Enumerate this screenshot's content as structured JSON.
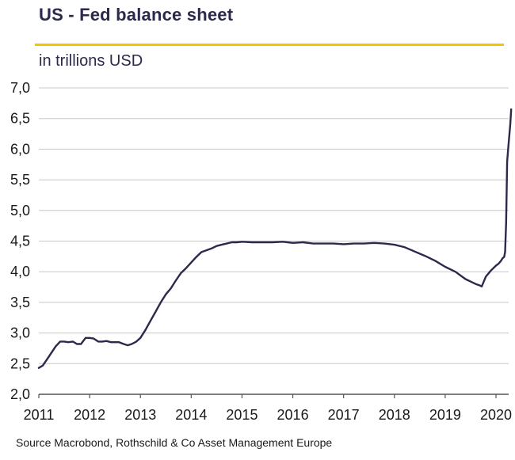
{
  "title": "US - Fed balance sheet",
  "subtitle": "in trillions USD",
  "source": "Source Macrobond,  Rothschild & Co Asset Management  Europe",
  "colors": {
    "accent_rule": "#f2c500",
    "line": "#2b2a4c",
    "grid": "#c8c8c8",
    "axis": "#555555"
  },
  "chart_data": {
    "type": "line",
    "title": "US - Fed balance sheet",
    "ylabel": "in trillions USD",
    "xlabel": "",
    "xlim": [
      2011,
      2020.3
    ],
    "ylim": [
      2.0,
      7.0
    ],
    "grid": "horizontal",
    "x_ticks": [
      {
        "value": 2011,
        "label": "2011"
      },
      {
        "value": 2012,
        "label": "2012"
      },
      {
        "value": 2013,
        "label": "2013"
      },
      {
        "value": 2014,
        "label": "2014"
      },
      {
        "value": 2015,
        "label": "2015"
      },
      {
        "value": 2016,
        "label": "2016"
      },
      {
        "value": 2017,
        "label": "2017"
      },
      {
        "value": 2018,
        "label": "2018"
      },
      {
        "value": 2019,
        "label": "2019"
      },
      {
        "value": 2020,
        "label": "2020"
      }
    ],
    "y_ticks": [
      {
        "value": 2.0,
        "label": "2,0"
      },
      {
        "value": 2.5,
        "label": "2,5"
      },
      {
        "value": 3.0,
        "label": "3,0"
      },
      {
        "value": 3.5,
        "label": "3,5"
      },
      {
        "value": 4.0,
        "label": "4,0"
      },
      {
        "value": 4.5,
        "label": "4,5"
      },
      {
        "value": 5.0,
        "label": "5,0"
      },
      {
        "value": 5.5,
        "label": "5,5"
      },
      {
        "value": 6.0,
        "label": "6,0"
      },
      {
        "value": 6.5,
        "label": "6,5"
      },
      {
        "value": 7.0,
        "label": "7,0"
      }
    ],
    "series": [
      {
        "x": [
          2011.0,
          2011.08,
          2011.17,
          2011.25,
          2011.33,
          2011.42,
          2011.5,
          2011.58,
          2011.67,
          2011.75,
          2011.83,
          2011.92,
          2012.0,
          2012.08,
          2012.17,
          2012.25,
          2012.33,
          2012.42,
          2012.5,
          2012.58,
          2012.67,
          2012.75,
          2012.83,
          2012.92,
          2013.0,
          2013.1,
          2013.2,
          2013.3,
          2013.4,
          2013.5,
          2013.6,
          2013.7,
          2013.8,
          2013.9,
          2014.0,
          2014.1,
          2014.2,
          2014.3,
          2014.4,
          2014.5,
          2014.6,
          2014.7,
          2014.8,
          2014.9,
          2015.0,
          2015.2,
          2015.4,
          2015.6,
          2015.8,
          2016.0,
          2016.2,
          2016.4,
          2016.6,
          2016.8,
          2017.0,
          2017.2,
          2017.4,
          2017.6,
          2017.8,
          2018.0,
          2018.2,
          2018.4,
          2018.6,
          2018.8,
          2019.0,
          2019.2,
          2019.4,
          2019.5,
          2019.6,
          2019.67,
          2019.72,
          2019.8,
          2019.9,
          2020.0,
          2020.05,
          2020.1,
          2020.13,
          2020.16,
          2020.18,
          2020.2,
          2020.22,
          2020.25,
          2020.28,
          2020.3
        ],
        "values": [
          2.43,
          2.47,
          2.58,
          2.68,
          2.78,
          2.86,
          2.86,
          2.85,
          2.86,
          2.82,
          2.82,
          2.92,
          2.92,
          2.91,
          2.86,
          2.86,
          2.87,
          2.85,
          2.85,
          2.85,
          2.82,
          2.8,
          2.82,
          2.86,
          2.92,
          3.05,
          3.2,
          3.35,
          3.5,
          3.63,
          3.73,
          3.86,
          3.98,
          4.06,
          4.15,
          4.24,
          4.32,
          4.35,
          4.38,
          4.42,
          4.44,
          4.46,
          4.48,
          4.48,
          4.49,
          4.48,
          4.48,
          4.48,
          4.49,
          4.47,
          4.48,
          4.46,
          4.46,
          4.46,
          4.45,
          4.46,
          4.46,
          4.47,
          4.46,
          4.44,
          4.4,
          4.33,
          4.26,
          4.18,
          4.08,
          4.0,
          3.88,
          3.84,
          3.8,
          3.78,
          3.76,
          3.92,
          4.02,
          4.1,
          4.13,
          4.18,
          4.22,
          4.24,
          4.32,
          4.8,
          5.8,
          6.1,
          6.4,
          6.65
        ]
      }
    ]
  }
}
